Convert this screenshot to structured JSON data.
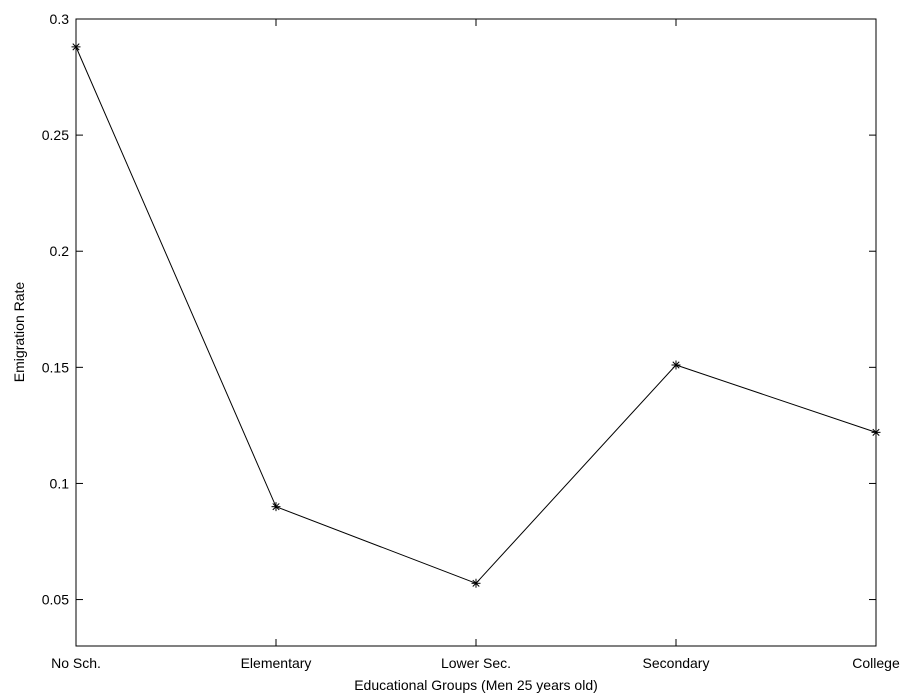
{
  "chart_data": {
    "type": "line",
    "title": "",
    "xlabel": "Educational Groups (Men 25 years old)",
    "ylabel": "Emigration Rate",
    "categories": [
      "No Sch.",
      "Elementary",
      "Lower Sec.",
      "Secondary",
      "College"
    ],
    "series": [
      {
        "values": [
          0.288,
          0.09,
          0.057,
          0.151,
          0.122
        ]
      }
    ],
    "ylim": [
      0.03,
      0.3
    ],
    "yticks": [
      0.05,
      0.1,
      0.15,
      0.2,
      0.25,
      0.3
    ],
    "ytick_labels": [
      "0.05",
      "0.1",
      "0.15",
      "0.2",
      "0.25",
      "0.3"
    ],
    "marker": "asterisk",
    "line_color": "#000000",
    "grid": false,
    "legend": false
  }
}
